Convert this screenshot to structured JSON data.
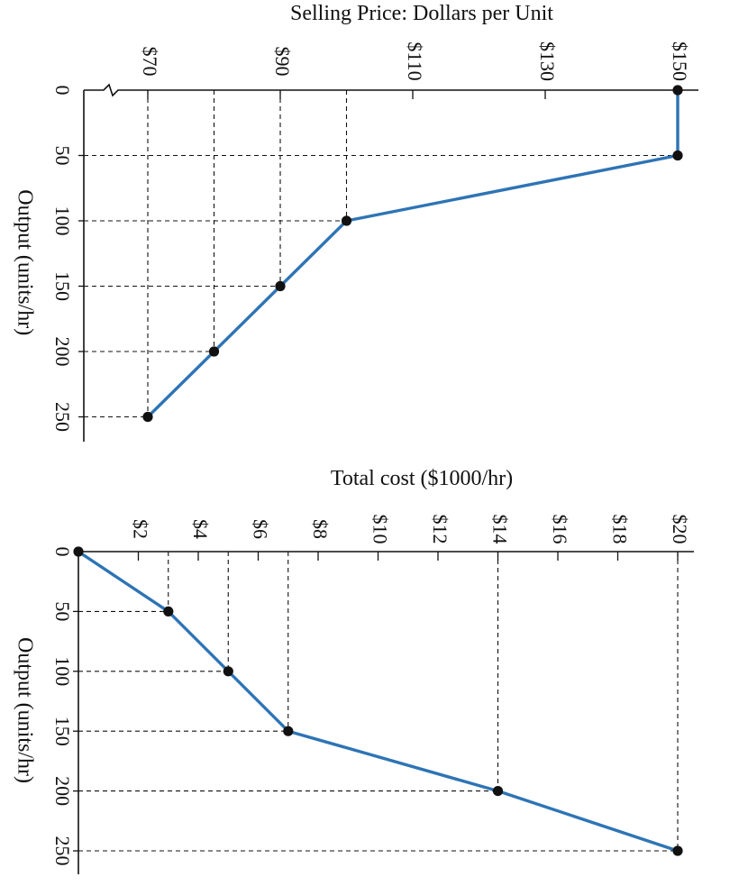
{
  "chart_data": [
    {
      "type": "line",
      "title": "Selling Price: Dollars per Unit",
      "xlabel": "Output (units/hr)",
      "ylabel": "Selling Price: Dollars per Unit",
      "orientation": "rotated-90-clockwise",
      "x_ticks": [
        0,
        50,
        100,
        150,
        200,
        250
      ],
      "x_tick_labels": [
        "0",
        "50",
        "100",
        "150",
        "200",
        "250"
      ],
      "y_ticks": [
        70,
        90,
        110,
        130,
        150
      ],
      "y_tick_labels": [
        "$70",
        "$90",
        "$110",
        "$130",
        "$150"
      ],
      "axis_break": true,
      "series": [
        {
          "x": [
            0,
            50,
            100,
            150,
            200,
            250
          ],
          "y": [
            150,
            150,
            100,
            90,
            80,
            70
          ]
        }
      ],
      "color": "#2e74b5"
    },
    {
      "type": "line",
      "title": "Total cost ($1000/hr)",
      "xlabel": "Output (units/hr)",
      "ylabel": "Total cost ($1000/hr)",
      "orientation": "rotated-90-clockwise",
      "x_ticks": [
        0,
        50,
        100,
        150,
        200,
        250
      ],
      "x_tick_labels": [
        "0",
        "50",
        "100",
        "150",
        "200",
        "250"
      ],
      "y_ticks": [
        2,
        4,
        6,
        8,
        10,
        12,
        14,
        16,
        18,
        20
      ],
      "y_tick_labels": [
        "$2",
        "$4",
        "$6",
        "$8",
        "$10",
        "$12",
        "$14",
        "$16",
        "$18",
        "$20"
      ],
      "series": [
        {
          "x": [
            0,
            50,
            100,
            150,
            200,
            250
          ],
          "y": [
            0,
            3,
            5,
            7,
            14,
            20
          ]
        }
      ],
      "color": "#2e74b5"
    }
  ]
}
